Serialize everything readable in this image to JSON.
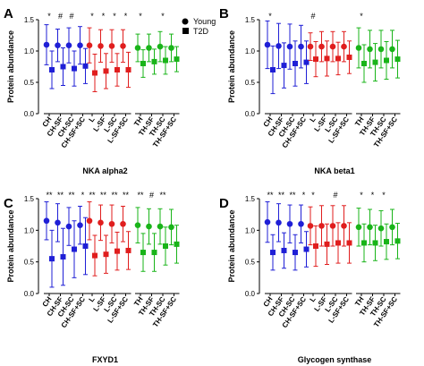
{
  "legend": [
    {
      "label": "Young",
      "marker": "circle"
    },
    {
      "label": "T2D",
      "marker": "square"
    }
  ],
  "colors": {
    "CH": "#1f1fd6",
    "L": "#e01e1e",
    "TH": "#19b419",
    "axis": "#000000"
  },
  "chart_data": [
    {
      "panel": "A",
      "type": "scatter",
      "title": "NKA alpha2",
      "ylabel": "Protein abundance",
      "ylim": [
        0,
        1.5
      ],
      "yticks": [
        "0.0",
        "0.5",
        "1.0",
        "1.5"
      ],
      "grid": false,
      "legend_position": "top-right",
      "groups": [
        {
          "key": "CH",
          "categories": [
            "CH",
            "CH-SF",
            "CH-SC",
            "CH-SF+SC"
          ],
          "young": [
            1.1,
            1.09,
            1.09,
            1.09
          ],
          "t2d": [
            0.7,
            0.75,
            0.72,
            0.76
          ],
          "young_err": [
            0.32,
            0.26,
            0.28,
            0.3
          ],
          "t2d_err": [
            0.3,
            0.3,
            0.28,
            0.28
          ],
          "marks": [
            "*",
            "#",
            "#",
            ""
          ]
        },
        {
          "key": "L",
          "categories": [
            "L",
            "L-SF",
            "L-SC",
            "L-SF+SC"
          ],
          "young": [
            1.09,
            1.08,
            1.08,
            1.08
          ],
          "t2d": [
            0.65,
            0.68,
            0.7,
            0.7
          ],
          "young_err": [
            0.28,
            0.26,
            0.26,
            0.26
          ],
          "t2d_err": [
            0.3,
            0.28,
            0.26,
            0.28
          ],
          "marks": [
            "*",
            "*",
            "*",
            "*"
          ]
        },
        {
          "key": "TH",
          "categories": [
            "TH",
            "TH-SF",
            "TH-SC",
            "TH-SF+SC"
          ],
          "young": [
            1.05,
            1.05,
            1.07,
            1.05
          ],
          "t2d": [
            0.8,
            0.83,
            0.85,
            0.87
          ],
          "young_err": [
            0.22,
            0.22,
            0.24,
            0.22
          ],
          "t2d_err": [
            0.22,
            0.2,
            0.22,
            0.2
          ],
          "marks": [
            "*",
            "",
            "*",
            ""
          ]
        }
      ]
    },
    {
      "panel": "B",
      "type": "scatter",
      "title": "NKA beta1",
      "ylabel": "Protein abundance",
      "ylim": [
        0,
        1.5
      ],
      "yticks": [
        "0.0",
        "0.5",
        "1.0",
        "1.5"
      ],
      "grid": false,
      "groups": [
        {
          "key": "CH",
          "categories": [
            "CH",
            "CH-SF",
            "CH-SC",
            "CH-SF+SC"
          ],
          "young": [
            1.1,
            1.08,
            1.07,
            1.07
          ],
          "t2d": [
            0.7,
            0.77,
            0.8,
            0.82
          ],
          "young_err": [
            0.38,
            0.36,
            0.36,
            0.34
          ],
          "t2d_err": [
            0.38,
            0.36,
            0.36,
            0.34
          ],
          "marks": [
            "*",
            "",
            "",
            ""
          ]
        },
        {
          "key": "L",
          "categories": [
            "L",
            "L-SF",
            "L-SC",
            "L-SF+SC"
          ],
          "young": [
            1.07,
            1.07,
            1.07,
            1.07
          ],
          "t2d": [
            0.87,
            0.88,
            0.88,
            0.9
          ],
          "young_err": [
            0.22,
            0.24,
            0.24,
            0.24
          ],
          "t2d_err": [
            0.28,
            0.28,
            0.26,
            0.26
          ],
          "marks": [
            "#",
            "",
            "",
            ""
          ]
        },
        {
          "key": "TH",
          "categories": [
            "TH",
            "TH-SF",
            "TH-SC",
            "TH-SF+SC"
          ],
          "young": [
            1.05,
            1.03,
            1.03,
            1.03
          ],
          "t2d": [
            0.8,
            0.82,
            0.85,
            0.87
          ],
          "young_err": [
            0.32,
            0.3,
            0.3,
            0.3
          ],
          "t2d_err": [
            0.3,
            0.3,
            0.3,
            0.3
          ],
          "marks": [
            "*",
            "",
            "",
            ""
          ]
        }
      ]
    },
    {
      "panel": "C",
      "type": "scatter",
      "title": "FXYD1",
      "ylabel": "Protein abundance",
      "ylim": [
        0,
        1.5
      ],
      "yticks": [
        "0.0",
        "0.5",
        "1.0",
        "1.5"
      ],
      "grid": false,
      "groups": [
        {
          "key": "CH",
          "categories": [
            "CH",
            "CH-SF",
            "CH-SC",
            "CH-SF+SC"
          ],
          "young": [
            1.15,
            1.12,
            1.06,
            1.08
          ],
          "t2d": [
            0.55,
            0.58,
            0.7,
            0.75
          ],
          "young_err": [
            0.3,
            0.3,
            0.3,
            0.3
          ],
          "t2d_err": [
            0.45,
            0.45,
            0.45,
            0.45
          ],
          "marks": [
            "**",
            "**",
            "**",
            "*"
          ]
        },
        {
          "key": "L",
          "categories": [
            "L",
            "L-SF",
            "L-SC",
            "L-SF+SC"
          ],
          "young": [
            1.15,
            1.12,
            1.1,
            1.1
          ],
          "t2d": [
            0.6,
            0.62,
            0.67,
            0.68
          ],
          "young_err": [
            0.3,
            0.28,
            0.3,
            0.28
          ],
          "t2d_err": [
            0.32,
            0.3,
            0.3,
            0.3
          ],
          "marks": [
            "**",
            "**",
            "**",
            "**"
          ]
        },
        {
          "key": "TH",
          "categories": [
            "TH",
            "TH-SF",
            "TH-SC",
            "TH-SF+SC"
          ],
          "young": [
            1.08,
            1.06,
            1.06,
            1.05
          ],
          "t2d": [
            0.65,
            0.65,
            0.75,
            0.78
          ],
          "young_err": [
            0.28,
            0.28,
            0.28,
            0.28
          ],
          "t2d_err": [
            0.3,
            0.3,
            0.3,
            0.3
          ],
          "marks": [
            "**",
            "#",
            "**",
            ""
          ]
        }
      ]
    },
    {
      "panel": "D",
      "type": "scatter",
      "title": "Glycogen synthase",
      "ylabel": "Protein abundance",
      "ylim": [
        0,
        1.5
      ],
      "yticks": [
        "0.0",
        "0.5",
        "1.0",
        "1.5"
      ],
      "grid": false,
      "groups": [
        {
          "key": "CH",
          "categories": [
            "CH",
            "CH-SF",
            "CH-SC",
            "CH-SF+SC"
          ],
          "young": [
            1.13,
            1.12,
            1.1,
            1.1
          ],
          "t2d": [
            0.65,
            0.68,
            0.65,
            0.7
          ],
          "young_err": [
            0.32,
            0.3,
            0.3,
            0.3
          ],
          "t2d_err": [
            0.28,
            0.28,
            0.28,
            0.28
          ],
          "marks": [
            "**",
            "**",
            "**",
            "*"
          ]
        },
        {
          "key": "L",
          "categories": [
            "L",
            "L-SF",
            "L-SC",
            "L-SF+SC"
          ],
          "young": [
            1.07,
            1.07,
            1.07,
            1.07
          ],
          "t2d": [
            0.75,
            0.78,
            0.8,
            0.8
          ],
          "young_err": [
            0.3,
            0.32,
            0.32,
            0.32
          ],
          "t2d_err": [
            0.32,
            0.32,
            0.32,
            0.32
          ],
          "marks": [
            "*",
            "",
            "#",
            ""
          ]
        },
        {
          "key": "TH",
          "categories": [
            "TH",
            "TH-SF",
            "TH-SC",
            "TH-SF+SC"
          ],
          "young": [
            1.05,
            1.05,
            1.03,
            1.05
          ],
          "t2d": [
            0.8,
            0.8,
            0.82,
            0.83
          ],
          "young_err": [
            0.3,
            0.28,
            0.28,
            0.28
          ],
          "t2d_err": [
            0.3,
            0.28,
            0.28,
            0.28
          ],
          "marks": [
            "*",
            "*",
            "*",
            ""
          ]
        }
      ]
    }
  ]
}
